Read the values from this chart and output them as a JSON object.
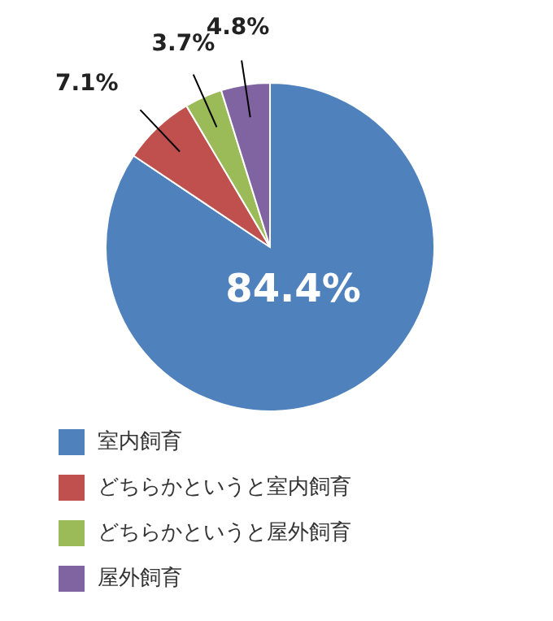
{
  "chart_data": {
    "type": "pie",
    "categories": [
      "室内飼育",
      "どちらかというと室内飼育",
      "どちらかというと屋外飼育",
      "屋外飼育"
    ],
    "values": [
      84.4,
      7.1,
      3.7,
      4.8
    ],
    "colors": [
      "#4f81bd",
      "#c0504d",
      "#9bbb59",
      "#8064a2"
    ],
    "value_labels": [
      "84.4%",
      "7.1%",
      "3.7%",
      "4.8%"
    ],
    "legend": "bottom"
  }
}
